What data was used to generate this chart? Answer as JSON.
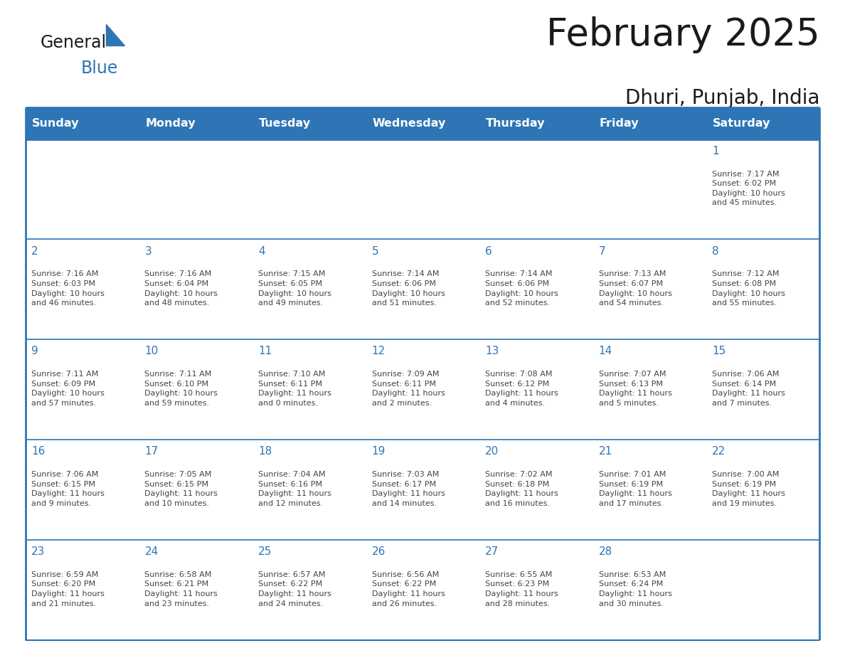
{
  "title": "February 2025",
  "subtitle": "Dhuri, Punjab, India",
  "header_color": "#2E75B6",
  "header_text_color": "#FFFFFF",
  "cell_bg_color": "#FFFFFF",
  "border_color": "#2E75B6",
  "day_number_color": "#2E75B6",
  "info_text_color": "#444444",
  "days_of_week": [
    "Sunday",
    "Monday",
    "Tuesday",
    "Wednesday",
    "Thursday",
    "Friday",
    "Saturday"
  ],
  "weeks": [
    [
      {
        "day": "",
        "sunrise": "",
        "sunset": "",
        "daylight": ""
      },
      {
        "day": "",
        "sunrise": "",
        "sunset": "",
        "daylight": ""
      },
      {
        "day": "",
        "sunrise": "",
        "sunset": "",
        "daylight": ""
      },
      {
        "day": "",
        "sunrise": "",
        "sunset": "",
        "daylight": ""
      },
      {
        "day": "",
        "sunrise": "",
        "sunset": "",
        "daylight": ""
      },
      {
        "day": "",
        "sunrise": "",
        "sunset": "",
        "daylight": ""
      },
      {
        "day": "1",
        "sunrise": "7:17 AM",
        "sunset": "6:02 PM",
        "daylight": "10 hours\nand 45 minutes."
      }
    ],
    [
      {
        "day": "2",
        "sunrise": "7:16 AM",
        "sunset": "6:03 PM",
        "daylight": "10 hours\nand 46 minutes."
      },
      {
        "day": "3",
        "sunrise": "7:16 AM",
        "sunset": "6:04 PM",
        "daylight": "10 hours\nand 48 minutes."
      },
      {
        "day": "4",
        "sunrise": "7:15 AM",
        "sunset": "6:05 PM",
        "daylight": "10 hours\nand 49 minutes."
      },
      {
        "day": "5",
        "sunrise": "7:14 AM",
        "sunset": "6:06 PM",
        "daylight": "10 hours\nand 51 minutes."
      },
      {
        "day": "6",
        "sunrise": "7:14 AM",
        "sunset": "6:06 PM",
        "daylight": "10 hours\nand 52 minutes."
      },
      {
        "day": "7",
        "sunrise": "7:13 AM",
        "sunset": "6:07 PM",
        "daylight": "10 hours\nand 54 minutes."
      },
      {
        "day": "8",
        "sunrise": "7:12 AM",
        "sunset": "6:08 PM",
        "daylight": "10 hours\nand 55 minutes."
      }
    ],
    [
      {
        "day": "9",
        "sunrise": "7:11 AM",
        "sunset": "6:09 PM",
        "daylight": "10 hours\nand 57 minutes."
      },
      {
        "day": "10",
        "sunrise": "7:11 AM",
        "sunset": "6:10 PM",
        "daylight": "10 hours\nand 59 minutes."
      },
      {
        "day": "11",
        "sunrise": "7:10 AM",
        "sunset": "6:11 PM",
        "daylight": "11 hours\nand 0 minutes."
      },
      {
        "day": "12",
        "sunrise": "7:09 AM",
        "sunset": "6:11 PM",
        "daylight": "11 hours\nand 2 minutes."
      },
      {
        "day": "13",
        "sunrise": "7:08 AM",
        "sunset": "6:12 PM",
        "daylight": "11 hours\nand 4 minutes."
      },
      {
        "day": "14",
        "sunrise": "7:07 AM",
        "sunset": "6:13 PM",
        "daylight": "11 hours\nand 5 minutes."
      },
      {
        "day": "15",
        "sunrise": "7:06 AM",
        "sunset": "6:14 PM",
        "daylight": "11 hours\nand 7 minutes."
      }
    ],
    [
      {
        "day": "16",
        "sunrise": "7:06 AM",
        "sunset": "6:15 PM",
        "daylight": "11 hours\nand 9 minutes."
      },
      {
        "day": "17",
        "sunrise": "7:05 AM",
        "sunset": "6:15 PM",
        "daylight": "11 hours\nand 10 minutes."
      },
      {
        "day": "18",
        "sunrise": "7:04 AM",
        "sunset": "6:16 PM",
        "daylight": "11 hours\nand 12 minutes."
      },
      {
        "day": "19",
        "sunrise": "7:03 AM",
        "sunset": "6:17 PM",
        "daylight": "11 hours\nand 14 minutes."
      },
      {
        "day": "20",
        "sunrise": "7:02 AM",
        "sunset": "6:18 PM",
        "daylight": "11 hours\nand 16 minutes."
      },
      {
        "day": "21",
        "sunrise": "7:01 AM",
        "sunset": "6:19 PM",
        "daylight": "11 hours\nand 17 minutes."
      },
      {
        "day": "22",
        "sunrise": "7:00 AM",
        "sunset": "6:19 PM",
        "daylight": "11 hours\nand 19 minutes."
      }
    ],
    [
      {
        "day": "23",
        "sunrise": "6:59 AM",
        "sunset": "6:20 PM",
        "daylight": "11 hours\nand 21 minutes."
      },
      {
        "day": "24",
        "sunrise": "6:58 AM",
        "sunset": "6:21 PM",
        "daylight": "11 hours\nand 23 minutes."
      },
      {
        "day": "25",
        "sunrise": "6:57 AM",
        "sunset": "6:22 PM",
        "daylight": "11 hours\nand 24 minutes."
      },
      {
        "day": "26",
        "sunrise": "6:56 AM",
        "sunset": "6:22 PM",
        "daylight": "11 hours\nand 26 minutes."
      },
      {
        "day": "27",
        "sunrise": "6:55 AM",
        "sunset": "6:23 PM",
        "daylight": "11 hours\nand 28 minutes."
      },
      {
        "day": "28",
        "sunrise": "6:53 AM",
        "sunset": "6:24 PM",
        "daylight": "11 hours\nand 30 minutes."
      },
      {
        "day": "",
        "sunrise": "",
        "sunset": "",
        "daylight": ""
      }
    ]
  ],
  "logo_general_color": "#1a1a1a",
  "logo_blue_color": "#2E75B6",
  "fig_width": 11.88,
  "fig_height": 9.18,
  "background_color": "#FFFFFF"
}
